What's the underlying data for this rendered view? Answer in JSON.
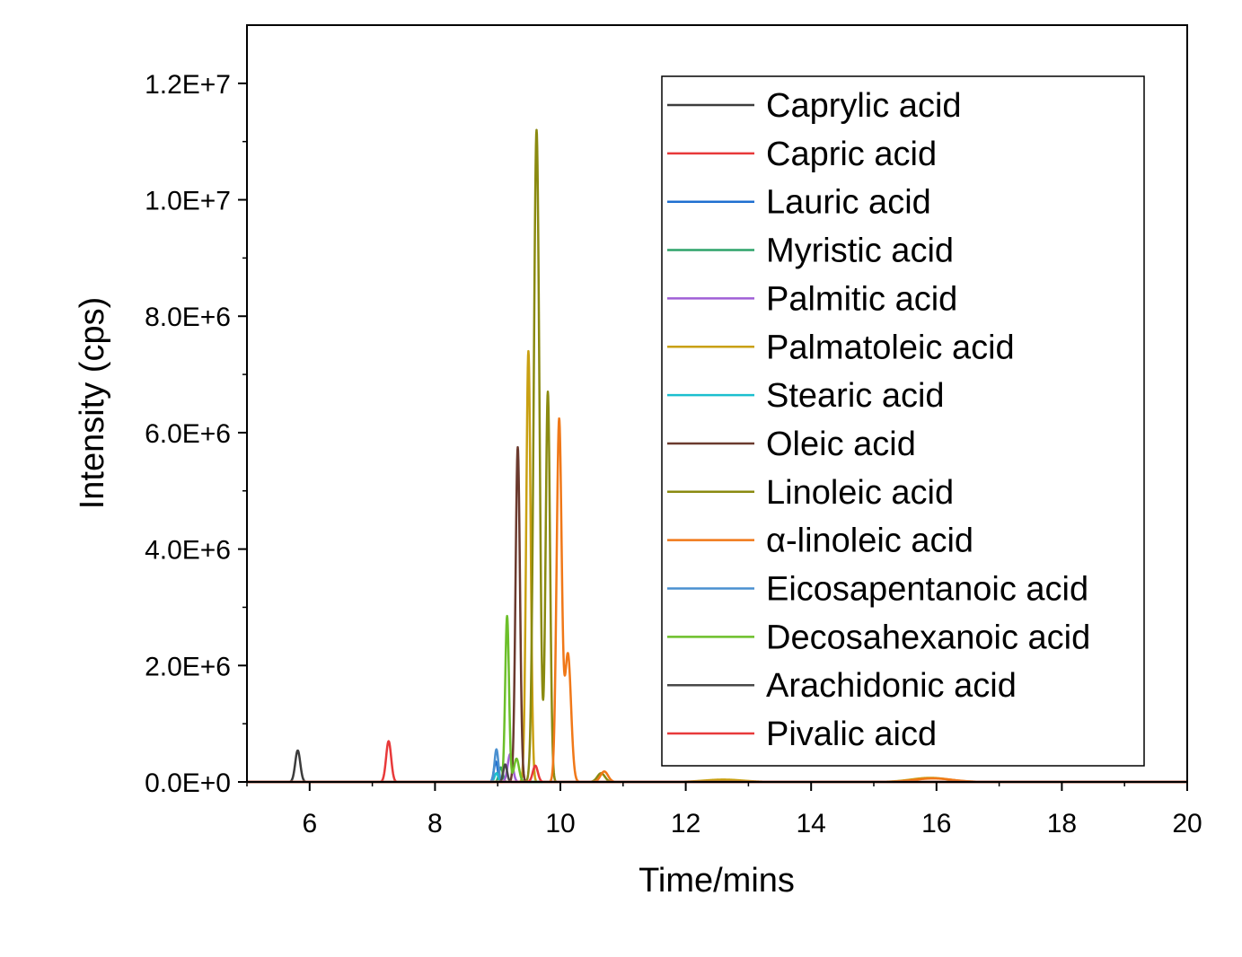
{
  "chart_data": {
    "type": "line",
    "xlabel": "Time/mins",
    "ylabel": "Intensity (cps)",
    "xlim": [
      5,
      20
    ],
    "ylim": [
      0,
      13000000
    ],
    "x_ticks": [
      6,
      8,
      10,
      12,
      14,
      16,
      18,
      20
    ],
    "x_tick_labels": [
      "6",
      "8",
      "10",
      "12",
      "14",
      "16",
      "18",
      "20"
    ],
    "y_ticks": [
      0,
      2000000,
      4000000,
      6000000,
      8000000,
      10000000,
      12000000
    ],
    "y_tick_labels": [
      "0.0E+0",
      "2.0E+6",
      "4.0E+6",
      "6.0E+6",
      "8.0E+6",
      "1.0E+7",
      "1.2E+7"
    ],
    "legend_position": "top-right",
    "grid": false,
    "series": [
      {
        "name": "Caprylic acid",
        "color": "#3c3c3c",
        "peaks": [
          [
            5.81,
            540000,
            0.04
          ]
        ]
      },
      {
        "name": "Capric acid",
        "color": "#e8393a",
        "peaks": [
          [
            7.26,
            700000,
            0.04
          ]
        ]
      },
      {
        "name": "Lauric acid",
        "color": "#1f6fd0",
        "peaks": [
          [
            8.97,
            350000,
            0.03
          ]
        ]
      },
      {
        "name": "Myristic acid",
        "color": "#2ea36a",
        "peaks": [
          [
            9.05,
            250000,
            0.03
          ]
        ]
      },
      {
        "name": "Palmitic acid",
        "color": "#a05fd6",
        "peaks": [
          [
            9.2,
            480000,
            0.04
          ]
        ]
      },
      {
        "name": "Palmatoleic acid",
        "color": "#c9a012",
        "peaks": [
          [
            9.49,
            7400000,
            0.035
          ],
          [
            15.9,
            70000,
            0.3
          ],
          [
            12.6,
            40000,
            0.3
          ]
        ]
      },
      {
        "name": "Stearic acid",
        "color": "#1bbfcf",
        "peaks": [
          [
            8.98,
            150000,
            0.03
          ]
        ]
      },
      {
        "name": "Oleic acid",
        "color": "#6b3a2e",
        "peaks": [
          [
            9.32,
            5750000,
            0.035
          ]
        ]
      },
      {
        "name": "Linoleic acid",
        "color": "#8a8a10",
        "peaks": [
          [
            9.62,
            11200000,
            0.045
          ],
          [
            9.8,
            6700000,
            0.035
          ],
          [
            10.65,
            150000,
            0.06
          ]
        ]
      },
      {
        "name": "α-linoleic acid",
        "color": "#f07818",
        "peaks": [
          [
            9.98,
            6200000,
            0.04
          ],
          [
            10.12,
            2200000,
            0.05
          ],
          [
            10.7,
            180000,
            0.06
          ],
          [
            15.95,
            60000,
            0.3
          ]
        ]
      },
      {
        "name": "Eicosapentanoic acid",
        "color": "#4a90d0",
        "peaks": [
          [
            8.98,
            560000,
            0.03
          ]
        ]
      },
      {
        "name": "Decosahexanoic acid",
        "color": "#6cbf2a",
        "peaks": [
          [
            9.15,
            2850000,
            0.03
          ],
          [
            9.3,
            400000,
            0.04
          ]
        ]
      },
      {
        "name": "Arachidonic acid",
        "color": "#484848",
        "peaks": [
          [
            9.12,
            300000,
            0.03
          ]
        ]
      },
      {
        "name": "Pivalic aicd",
        "color": "#e8393a",
        "peaks": [
          [
            9.6,
            280000,
            0.04
          ]
        ]
      }
    ]
  }
}
